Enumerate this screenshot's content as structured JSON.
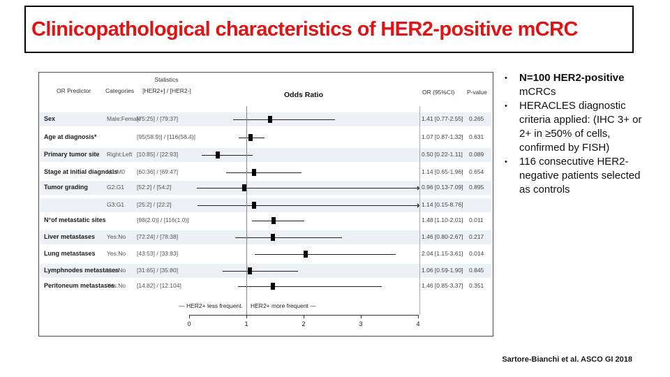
{
  "slide": {
    "title": "Clinicopathological characteristics of HER2-positive mCRC",
    "footer": "Sartore-Bianchi et al. ASCO GI 2018"
  },
  "colors": {
    "title_red": "#e01414",
    "row_stripe": "#edf0f5",
    "marker_black": "#000000"
  },
  "icons": {
    "bullet": "•",
    "arrow_right": "›"
  },
  "bullets": [
    {
      "bold": "N=100 HER2-positive",
      "rest": " mCRCs"
    },
    {
      "bold": "",
      "rest": "HERACLES diagnostic criteria applied: (IHC 3+ or 2+ in ≥50% of cells, confirmed by FISH)"
    },
    {
      "bold": "",
      "rest": "116 consecutive HER2-negative patients selected as controls"
    }
  ],
  "chart_data": {
    "type": "forest-plot",
    "title": "Odds Ratio",
    "headers": {
      "statistics_group": "Statistics",
      "predictor": "OR Predictor",
      "categories": "Categories",
      "statistics": "[HER2+] / [HER2-]",
      "or_ci": "OR (95%CI)",
      "p_value": "P-value"
    },
    "legend_left": "— HER2+ less frequent.",
    "legend_right": "HER2+ more frequent —",
    "x_axis": {
      "range": [
        0,
        4
      ],
      "ticks": [
        "0",
        "1",
        "2",
        "3",
        "4"
      ],
      "ref_line": 1
    },
    "rows": [
      {
        "label": "Sex",
        "category": "Male:Female",
        "stats": "[75:25] / [79:37]",
        "or": 1.41,
        "ci_low": 0.77,
        "ci_high": 2.55,
        "or_text": "1.41 [0.77-2.55]",
        "p_value": "0.265",
        "shaded": true
      },
      {
        "label": "Age at diagnosis*",
        "category": "",
        "stats": "[95(58.9)] / [116(58.4)]",
        "or": 1.07,
        "ci_low": 0.87,
        "ci_high": 1.32,
        "or_text": "1.07 [0.87-1.32]",
        "p_value": "0.631",
        "shaded": false
      },
      {
        "label": "Primary tumor site",
        "category": "Right:Left",
        "stats": "[10:85] / [22:93]",
        "or": 0.5,
        "ci_low": 0.22,
        "ci_high": 1.11,
        "or_text": "0.50 [0.22-1.11]",
        "p_value": "0.089",
        "shaded": true
      },
      {
        "label": "Stage at initial diagnosis",
        "category": "M1:M0",
        "stats": "[60:36] / [69:47]",
        "or": 1.14,
        "ci_low": 0.65,
        "ci_high": 1.96,
        "or_text": "1.14 [0.65-1.96]",
        "p_value": "0.654",
        "shaded": false
      },
      {
        "label": "Tumor grading",
        "category": "G2:G1",
        "stats": "[52:2] / [54:2]",
        "or": 0.96,
        "ci_low": 0.13,
        "ci_high": 7.09,
        "or_text": "0.96 [0.13-7.09]",
        "p_value": "0.895",
        "shaded": true
      },
      {
        "label": "",
        "category": "G3:G1",
        "stats": "[25:2] / [22:2]",
        "or": 1.14,
        "ci_low": 0.15,
        "ci_high": 8.76,
        "or_text": "1.14 [0.15-8.76]",
        "p_value": "",
        "shaded": true
      },
      {
        "label": "N°of metastatic sites",
        "category": "",
        "stats": "[98(2.0)] / [116(1.0)]",
        "or": 1.48,
        "ci_low": 1.1,
        "ci_high": 2.01,
        "or_text": "1.48 [1.10-2.01]",
        "p_value": "0.011",
        "shaded": false
      },
      {
        "label": "Liver metastases",
        "category": "Yes:No",
        "stats": "[72:24] / [78:38]",
        "or": 1.46,
        "ci_low": 0.8,
        "ci_high": 2.67,
        "or_text": "1.46 [0.80-2.67]",
        "p_value": "0.217",
        "shaded": true
      },
      {
        "label": "Lung metastases",
        "category": "Yes:No",
        "stats": "[43:53] / [33:83]",
        "or": 2.04,
        "ci_low": 1.15,
        "ci_high": 3.61,
        "or_text": "2.04 [1.15-3.61]",
        "p_value": "0.014",
        "shaded": false
      },
      {
        "label": "Lymphnodes metastases",
        "category": "Yes:No",
        "stats": "[31:65] / [35:80]",
        "or": 1.06,
        "ci_low": 0.59,
        "ci_high": 1.9,
        "or_text": "1.06 [0.59-1.90]",
        "p_value": "0.845",
        "shaded": true
      },
      {
        "label": "Peritoneum metastases",
        "category": "Yes:No",
        "stats": "[14:82] / [12:104]",
        "or": 1.46,
        "ci_low": 0.85,
        "ci_high": 3.37,
        "or_text": "1.46 [0.85-3.37]",
        "p_value": "0.351",
        "shaded": false
      }
    ]
  }
}
